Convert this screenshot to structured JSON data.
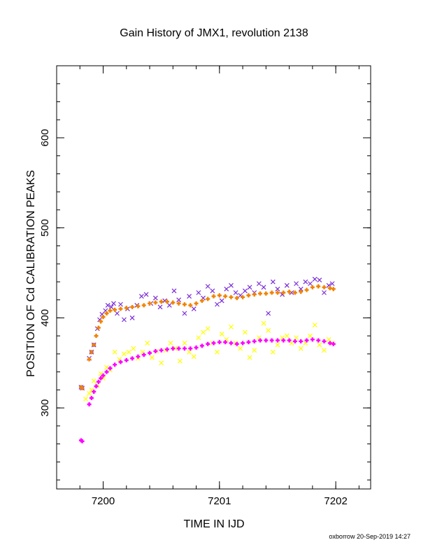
{
  "chart_data": {
    "type": "scatter",
    "title": "Gain History of JMX1, revolution 2138",
    "xlabel": "TIME IN IJD",
    "ylabel": "POSITION OF Cd CALIBRATION PEAKS",
    "xlim": [
      7199.6,
      7202.3
    ],
    "ylim": [
      210,
      680
    ],
    "x_ticks": [
      7200,
      7201,
      7202
    ],
    "x_tick_labels": [
      "7200",
      "7201",
      "7202"
    ],
    "y_ticks": [
      300,
      400,
      500,
      600
    ],
    "y_tick_labels": [
      "300",
      "400",
      "500",
      "600"
    ],
    "grid": false,
    "legend": "none",
    "series": [
      {
        "marker": "x",
        "color": "#7b2bd9",
        "x": [
          7199.81,
          7199.82,
          7199.88,
          7199.9,
          7199.92,
          7199.95,
          7199.97,
          7199.99,
          7200.02,
          7200.04,
          7200.07,
          7200.09,
          7200.12,
          7200.15,
          7200.18,
          7200.21,
          7200.25,
          7200.29,
          7200.33,
          7200.37,
          7200.41,
          7200.45,
          7200.49,
          7200.53,
          7200.57,
          7200.61,
          7200.65,
          7200.7,
          7200.74,
          7200.78,
          7200.82,
          7200.86,
          7200.9,
          7200.94,
          7200.98,
          7201.02,
          7201.06,
          7201.1,
          7201.14,
          7201.18,
          7201.22,
          7201.26,
          7201.3,
          7201.34,
          7201.38,
          7201.42,
          7201.46,
          7201.5,
          7201.54,
          7201.58,
          7201.62,
          7201.66,
          7201.7,
          7201.74,
          7201.78,
          7201.82,
          7201.86,
          7201.9,
          7201.94,
          7201.97
        ],
        "y": [
          323,
          322,
          355,
          362,
          370,
          388,
          398,
          404,
          408,
          414,
          412,
          416,
          405,
          415,
          398,
          410,
          400,
          414,
          424,
          426,
          416,
          422,
          412,
          419,
          414,
          430,
          420,
          405,
          424,
          410,
          428,
          422,
          435,
          430,
          415,
          419,
          432,
          436,
          428,
          425,
          430,
          434,
          428,
          438,
          434,
          405,
          440,
          432,
          426,
          436,
          428,
          438,
          432,
          440,
          438,
          443,
          442,
          428,
          436,
          438
        ]
      },
      {
        "marker": "+",
        "color": "#f08200",
        "x": [
          7199.81,
          7199.82,
          7199.88,
          7199.9,
          7199.92,
          7199.94,
          7199.96,
          7199.98,
          7200.0,
          7200.03,
          7200.06,
          7200.1,
          7200.15,
          7200.2,
          7200.25,
          7200.3,
          7200.35,
          7200.4,
          7200.45,
          7200.5,
          7200.55,
          7200.6,
          7200.65,
          7200.7,
          7200.75,
          7200.8,
          7200.85,
          7200.9,
          7200.95,
          7201.0,
          7201.05,
          7201.1,
          7201.15,
          7201.2,
          7201.25,
          7201.3,
          7201.35,
          7201.4,
          7201.45,
          7201.5,
          7201.55,
          7201.6,
          7201.65,
          7201.7,
          7201.75,
          7201.8,
          7201.85,
          7201.9,
          7201.95,
          7201.98
        ],
        "y": [
          323,
          322,
          354,
          362,
          370,
          380,
          389,
          396,
          401,
          405,
          408,
          409,
          410,
          411,
          412,
          413,
          414,
          416,
          417,
          418,
          418,
          417,
          416,
          415,
          414,
          416,
          419,
          421,
          424,
          425,
          424,
          423,
          422,
          423,
          425,
          426,
          427,
          427,
          428,
          428,
          428,
          429,
          428,
          429,
          431,
          434,
          435,
          434,
          433,
          432
        ]
      },
      {
        "marker": "x",
        "color": "#ffff00",
        "x": [
          7199.85,
          7199.88,
          7199.9,
          7199.92,
          7199.95,
          7199.98,
          7200.0,
          7200.03,
          7200.06,
          7200.1,
          7200.14,
          7200.18,
          7200.22,
          7200.26,
          7200.3,
          7200.34,
          7200.38,
          7200.42,
          7200.46,
          7200.5,
          7200.54,
          7200.58,
          7200.62,
          7200.66,
          7200.7,
          7200.74,
          7200.78,
          7200.82,
          7200.86,
          7200.9,
          7200.94,
          7200.98,
          7201.02,
          7201.06,
          7201.1,
          7201.14,
          7201.18,
          7201.22,
          7201.26,
          7201.3,
          7201.34,
          7201.38,
          7201.42,
          7201.46,
          7201.5,
          7201.54,
          7201.58,
          7201.62,
          7201.66,
          7201.7,
          7201.74,
          7201.78,
          7201.82,
          7201.86,
          7201.9,
          7201.94,
          7201.97
        ],
        "y": [
          310,
          316,
          320,
          330,
          325,
          338,
          333,
          345,
          342,
          362,
          354,
          360,
          362,
          366,
          355,
          362,
          372,
          356,
          363,
          350,
          364,
          372,
          366,
          352,
          372,
          362,
          357,
          378,
          384,
          388,
          372,
          362,
          382,
          376,
          390,
          372,
          366,
          384,
          356,
          364,
          378,
          394,
          386,
          362,
          370,
          378,
          380,
          372,
          378,
          366,
          372,
          380,
          392,
          370,
          364,
          376,
          372
        ]
      },
      {
        "marker": "+",
        "color": "#ff00ff",
        "x": [
          7199.81,
          7199.82,
          7199.88,
          7199.9,
          7199.92,
          7199.94,
          7199.96,
          7199.98,
          7200.0,
          7200.03,
          7200.06,
          7200.1,
          7200.15,
          7200.2,
          7200.25,
          7200.3,
          7200.35,
          7200.4,
          7200.45,
          7200.5,
          7200.55,
          7200.6,
          7200.65,
          7200.7,
          7200.75,
          7200.8,
          7200.85,
          7200.9,
          7200.95,
          7201.0,
          7201.05,
          7201.1,
          7201.15,
          7201.2,
          7201.25,
          7201.3,
          7201.35,
          7201.4,
          7201.45,
          7201.5,
          7201.55,
          7201.6,
          7201.65,
          7201.7,
          7201.75,
          7201.8,
          7201.85,
          7201.9,
          7201.95,
          7201.98
        ],
        "y": [
          264,
          263,
          304,
          311,
          318,
          324,
          329,
          333,
          336,
          340,
          344,
          348,
          351,
          353,
          355,
          357,
          359,
          361,
          363,
          364,
          365,
          366,
          366,
          366,
          366,
          367,
          369,
          371,
          372,
          373,
          373,
          372,
          371,
          372,
          373,
          374,
          375,
          375,
          375,
          375,
          375,
          375,
          374,
          374,
          375,
          376,
          375,
          374,
          372,
          371
        ]
      }
    ]
  },
  "footer": {
    "credit": "oxborrow 20-Sep-2019 14:27"
  }
}
